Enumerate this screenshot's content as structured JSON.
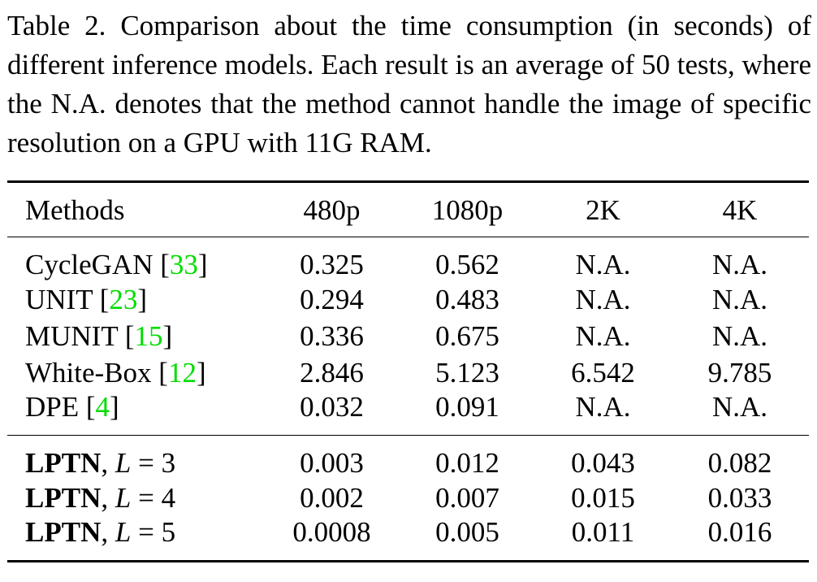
{
  "caption": "Table 2. Comparison about the time consumption (in seconds) of different inference models. Each result is an average of 50 tests, where the N.A. denotes that the method cannot handle the image of specific resolution on a GPU with 11G RAM.",
  "table": {
    "headers": [
      "Methods",
      "480p",
      "1080p",
      "2K",
      "4K"
    ],
    "baselines": [
      {
        "method": "CycleGAN",
        "cite": "33",
        "values": [
          "0.325",
          "0.562",
          "N.A.",
          "N.A."
        ]
      },
      {
        "method": "UNIT",
        "cite": "23",
        "values": [
          "0.294",
          "0.483",
          "N.A.",
          "N.A."
        ]
      },
      {
        "method": "MUNIT",
        "cite": "15",
        "values": [
          "0.336",
          "0.675",
          "N.A.",
          "N.A."
        ]
      },
      {
        "method": "White-Box",
        "cite": "12",
        "values": [
          "2.846",
          "5.123",
          "6.542",
          "9.785"
        ]
      },
      {
        "method": "DPE",
        "cite": "4",
        "values": [
          "0.032",
          "0.091",
          "N.A.",
          "N.A."
        ]
      }
    ],
    "ours": [
      {
        "method": "LPTN",
        "param": "L",
        "eq": "=",
        "level": "3",
        "values": [
          "0.003",
          "0.012",
          "0.043",
          "0.082"
        ]
      },
      {
        "method": "LPTN",
        "param": "L",
        "eq": "=",
        "level": "4",
        "values": [
          "0.002",
          "0.007",
          "0.015",
          "0.033"
        ]
      },
      {
        "method": "LPTN",
        "param": "L",
        "eq": "=",
        "level": "5",
        "values": [
          "0.0008",
          "0.005",
          "0.011",
          "0.016"
        ]
      }
    ],
    "colors": {
      "citation": "#00dd00",
      "text": "#000000"
    }
  }
}
